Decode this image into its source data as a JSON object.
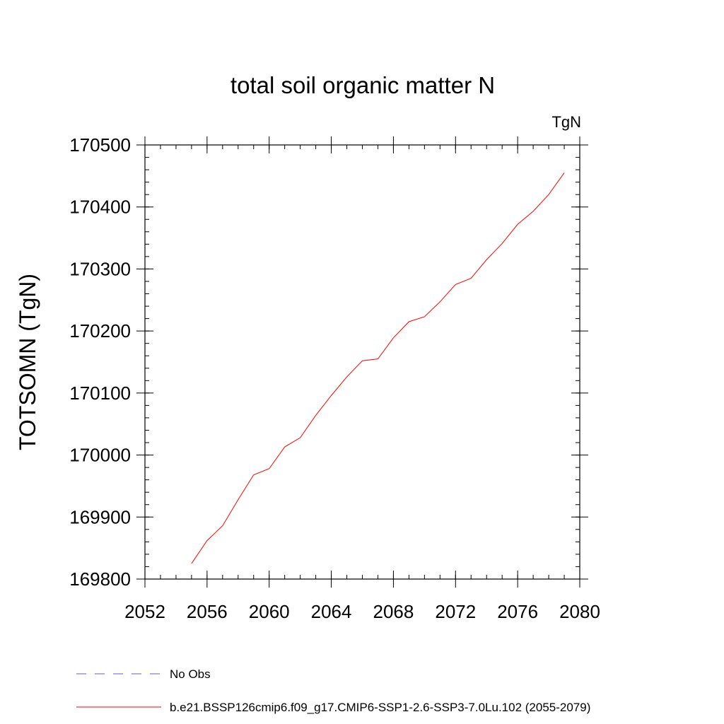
{
  "chart_data": {
    "type": "line",
    "title": "total soil organic matter N",
    "units_label": "TgN",
    "ylabel": "TOTSOMN  (TgN)",
    "xlabel": "",
    "xlim": [
      2052,
      2080
    ],
    "ylim": [
      169800,
      170500
    ],
    "x_ticks": [
      "2052",
      "2056",
      "2060",
      "2064",
      "2068",
      "2072",
      "2076",
      "2080"
    ],
    "y_ticks": [
      "169800",
      "169900",
      "170000",
      "170100",
      "170200",
      "170300",
      "170400",
      "170500"
    ],
    "series": [
      {
        "name": "No Obs",
        "color": "#6a5acd",
        "style": "dashed",
        "x": [],
        "y": []
      },
      {
        "name": "b.e21.BSSP126cmip6.f09_g17.CMIP6-SSP1-2.6-SSP3-7.0Lu.102 (2055-2079)",
        "color": "#ff0000",
        "style": "solid",
        "x": [
          2055,
          2056,
          2057,
          2058,
          2059,
          2060,
          2061,
          2062,
          2063,
          2064,
          2065,
          2066,
          2067,
          2068,
          2069,
          2070,
          2071,
          2072,
          2073,
          2074,
          2075,
          2076,
          2077,
          2078,
          2079
        ],
        "y": [
          169825,
          169862,
          169886,
          169928,
          169968,
          169978,
          170013,
          170028,
          170064,
          170096,
          170126,
          170152,
          170155,
          170189,
          170215,
          170223,
          170247,
          170275,
          170285,
          170315,
          170341,
          170372,
          170393,
          170420,
          170455
        ]
      }
    ],
    "legend_position": "bottom",
    "grid": false
  }
}
